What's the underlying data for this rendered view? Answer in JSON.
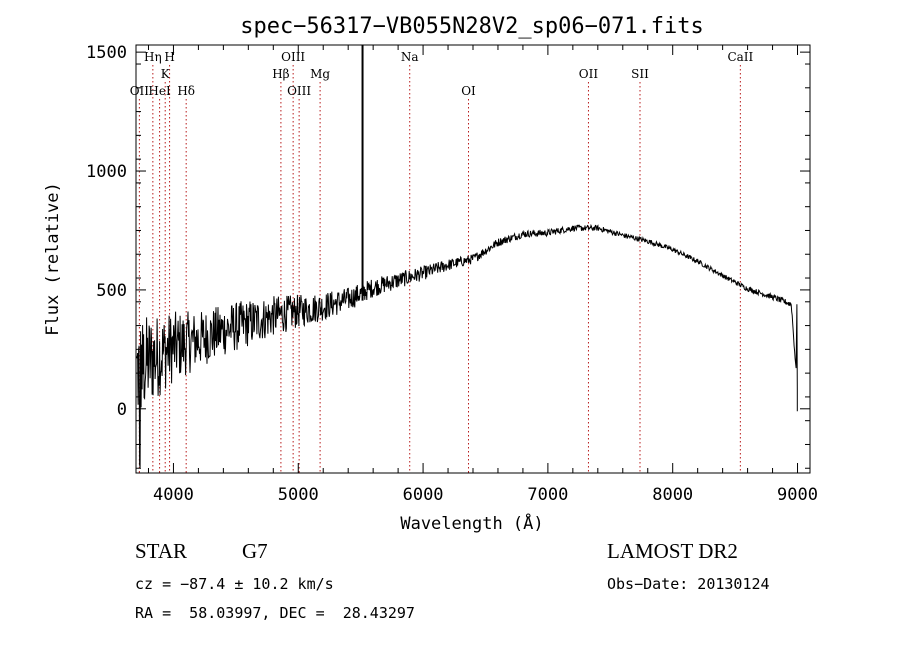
{
  "chart_data": {
    "type": "line",
    "title": "spec−56317−VB055N28V2_sp06−071.fits",
    "xlabel": "Wavelength (Å)",
    "ylabel": "Flux (relative)",
    "xlim": [
      3700,
      9100
    ],
    "ylim": [
      -270,
      1530
    ],
    "xticks": [
      4000,
      5000,
      6000,
      7000,
      8000,
      9000
    ],
    "yticks": [
      0,
      500,
      1000,
      1500
    ],
    "grid": false,
    "spike": {
      "x": 5515,
      "y": [
        455,
        1530
      ]
    },
    "line_markers": [
      {
        "label": "OII",
        "x": 3727,
        "row": 3
      },
      {
        "label": "Hη",
        "x": 3835,
        "row": 1
      },
      {
        "label": "HeI",
        "x": 3889,
        "row": 3
      },
      {
        "label": "K",
        "x": 3934,
        "row": 2
      },
      {
        "label": "H",
        "x": 3969,
        "row": 1
      },
      {
        "label": "Hδ",
        "x": 4102,
        "row": 3
      },
      {
        "label": "Hβ",
        "x": 4861,
        "row": 2
      },
      {
        "label": "OIII",
        "x": 4959,
        "row": 1
      },
      {
        "label": "OIII",
        "x": 5007,
        "row": 3
      },
      {
        "label": "Mg",
        "x": 5175,
        "row": 2
      },
      {
        "label": "Na",
        "x": 5893,
        "row": 1
      },
      {
        "label": "OI",
        "x": 6364,
        "row": 3
      },
      {
        "label": "OII",
        "x": 7325,
        "row": 2
      },
      {
        "label": "SII",
        "x": 7738,
        "row": 2
      },
      {
        "label": "CaII",
        "x": 8542,
        "row": 1
      }
    ],
    "spectrum_anchors": {
      "x": [
        3700,
        3800,
        3900,
        4000,
        4200,
        4400,
        4600,
        4800,
        5000,
        5200,
        5400,
        5600,
        5800,
        6000,
        6200,
        6400,
        6600,
        6800,
        7000,
        7200,
        7400,
        7600,
        7800,
        8000,
        8200,
        8400,
        8600,
        8800,
        8950,
        9000
      ],
      "y": [
        150,
        200,
        230,
        260,
        290,
        330,
        360,
        390,
        410,
        430,
        460,
        510,
        540,
        570,
        605,
        630,
        700,
        735,
        740,
        760,
        760,
        730,
        705,
        670,
        620,
        560,
        505,
        470,
        440,
        80
      ],
      "noise": [
        220,
        200,
        170,
        150,
        120,
        110,
        100,
        85,
        70,
        60,
        50,
        40,
        35,
        30,
        25,
        20,
        18,
        15,
        14,
        13,
        12,
        11,
        11,
        10,
        10,
        10,
        11,
        12,
        13,
        13
      ]
    }
  },
  "footer": {
    "object_type": "STAR",
    "subclass": "G7",
    "survey": "LAMOST DR2",
    "redshift": "cz = −87.4 ± 10.2 km/s",
    "obs_date": "Obs−Date: 20130124",
    "coords": "RA =  58.03997, DEC =  28.43297"
  }
}
